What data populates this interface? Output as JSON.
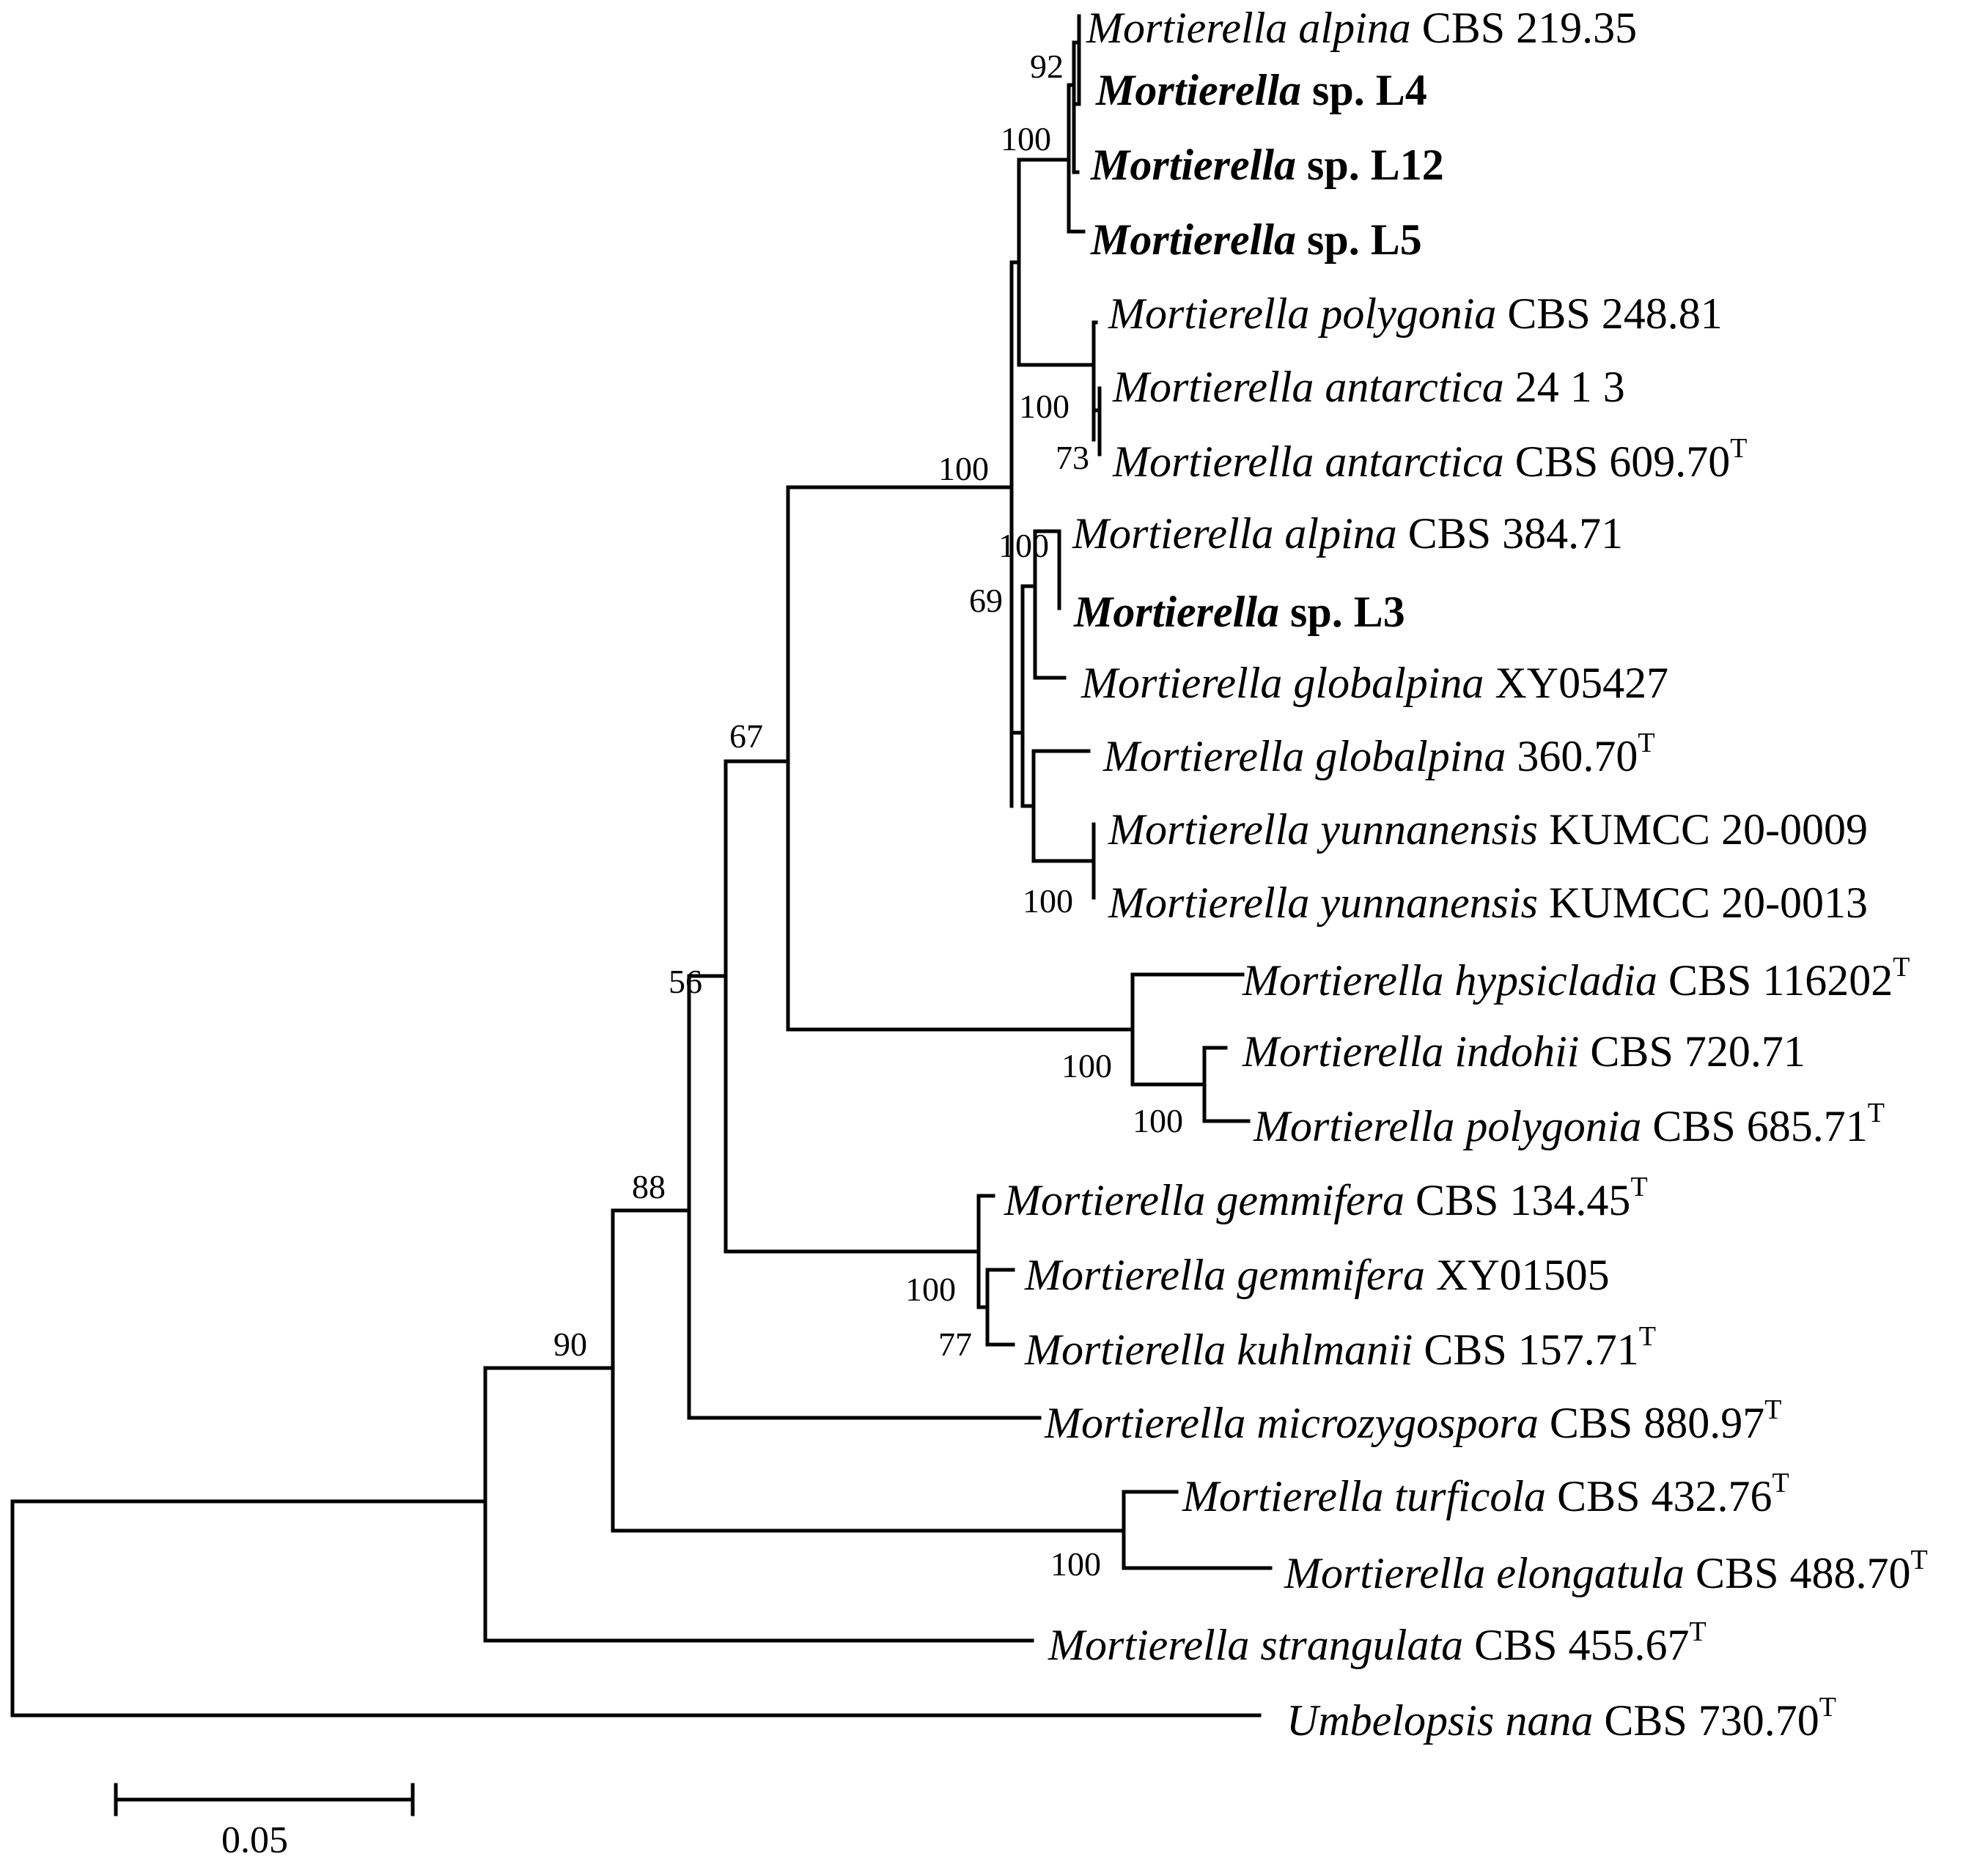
{
  "taxa": [
    {
      "id": "t1",
      "genus_species": "Mortierella alpina",
      "strain": "CBS 219.35",
      "type": false,
      "bold": false
    },
    {
      "id": "t2",
      "genus_species": "Mortierella",
      "strain": "sp. L4",
      "type": false,
      "bold": true
    },
    {
      "id": "t3",
      "genus_species": "Mortierella",
      "strain": "sp. L12",
      "type": false,
      "bold": true
    },
    {
      "id": "t4",
      "genus_species": "Mortierella",
      "strain": "sp. L5",
      "type": false,
      "bold": true
    },
    {
      "id": "t5",
      "genus_species": "Mortierella polygonia",
      "strain": "CBS 248.81",
      "type": false,
      "bold": false
    },
    {
      "id": "t6",
      "genus_species": "Mortierella antarctica",
      "strain": "24 1 3",
      "type": false,
      "bold": false
    },
    {
      "id": "t7",
      "genus_species": "Mortierella antarctica",
      "strain": "CBS 609.70",
      "type": true,
      "bold": false
    },
    {
      "id": "t8",
      "genus_species": "Mortierella alpina",
      "strain": "CBS 384.71",
      "type": false,
      "bold": false
    },
    {
      "id": "t9",
      "genus_species": "Mortierella",
      "strain": "sp. L3",
      "type": false,
      "bold": true
    },
    {
      "id": "t10",
      "genus_species": "Mortierella globalpina",
      "strain": "XY05427",
      "type": false,
      "bold": false
    },
    {
      "id": "t11",
      "genus_species": "Mortierella globalpina",
      "strain": "360.70",
      "type": true,
      "bold": false
    },
    {
      "id": "t12",
      "genus_species": "Mortierella yunnanensis",
      "strain": "KUMCC 20-0009",
      "type": false,
      "bold": false
    },
    {
      "id": "t13",
      "genus_species": "Mortierella yunnanensis",
      "strain": "KUMCC 20-0013",
      "type": false,
      "bold": false
    },
    {
      "id": "t14",
      "genus_species": "Mortierella hypsicladia",
      "strain": "CBS 116202",
      "type": true,
      "bold": false
    },
    {
      "id": "t15",
      "genus_species": "Mortierella indohii",
      "strain": "CBS 720.71",
      "type": false,
      "bold": false
    },
    {
      "id": "t16",
      "genus_species": "Mortierella polygonia",
      "strain": "CBS 685.71",
      "type": true,
      "bold": false
    },
    {
      "id": "t17",
      "genus_species": "Mortierella gemmifera",
      "strain": "CBS 134.45",
      "type": true,
      "bold": false
    },
    {
      "id": "t18",
      "genus_species": "Mortierella gemmifera",
      "strain": "XY01505",
      "type": false,
      "bold": false
    },
    {
      "id": "t19",
      "genus_species": "Mortierella kuhlmanii",
      "strain": "CBS 157.71",
      "type": true,
      "bold": false
    },
    {
      "id": "t20",
      "genus_species": "Mortierella microzygospora",
      "strain": "CBS 880.97",
      "type": true,
      "bold": false
    },
    {
      "id": "t21",
      "genus_species": "Mortierella turficola",
      "strain": "CBS 432.76",
      "type": true,
      "bold": false
    },
    {
      "id": "t22",
      "genus_species": "Mortierella elongatula",
      "strain": "CBS 488.70",
      "type": true,
      "bold": false
    },
    {
      "id": "t23",
      "genus_species": "Mortierella strangulata",
      "strain": "CBS 455.67",
      "type": true,
      "bold": false
    },
    {
      "id": "t24",
      "genus_species": "Umbelopsis nana",
      "strain": "CBS 730.70",
      "type": true,
      "bold": false
    }
  ],
  "type_marker": "T",
  "bootstrap_values": [
    {
      "node": "alpina-L4",
      "value": "92"
    },
    {
      "node": "alpina-L-group",
      "value": "100"
    },
    {
      "node": "polygonia-antarct",
      "value": "100"
    },
    {
      "node": "antarctica-pair",
      "value": "73"
    },
    {
      "node": "core-clade",
      "value": "100"
    },
    {
      "node": "alpina384-L3",
      "value": "100"
    },
    {
      "node": "globalpina-group",
      "value": "69"
    },
    {
      "node": "yunnanensis-pair",
      "value": "100"
    },
    {
      "node": "core-plus-hyps",
      "value": "67"
    },
    {
      "node": "hypsicladia-group",
      "value": "100"
    },
    {
      "node": "indohii-polygonia",
      "value": "100"
    },
    {
      "node": "gemmifera-group",
      "value": "100"
    },
    {
      "node": "gemmifera-kuhl",
      "value": "77"
    },
    {
      "node": "plus-gemmifera",
      "value": "56"
    },
    {
      "node": "plus-microzygo",
      "value": "88"
    },
    {
      "node": "turficola-elong",
      "value": "100"
    },
    {
      "node": "plus-strangulata",
      "value": "90"
    }
  ],
  "scale_bar": {
    "label": "0.05",
    "length_units": 0.05
  }
}
